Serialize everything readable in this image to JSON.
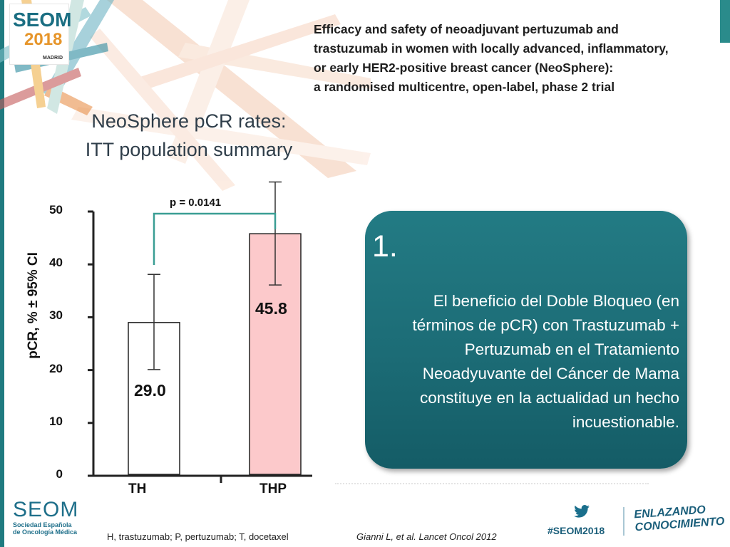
{
  "header": {
    "logo_text": "SEOM",
    "logo_year": "2018",
    "logo_city": "MADRID",
    "paper_title_lines": [
      "Efficacy and safety of neoadjuvant pertuzumab and",
      "trastuzumab in women with locally advanced, inflammatory,",
      "or early HER2-positive breast cancer (NeoSphere):",
      "a randomised multicentre, open-label, phase 2 trial"
    ]
  },
  "chart_title_lines": [
    "NeoSphere pCR rates:",
    "ITT population summary"
  ],
  "chart_data": {
    "type": "bar",
    "categories": [
      "TH",
      "THP"
    ],
    "values": [
      29.0,
      45.8
    ],
    "value_labels": [
      "29.0",
      "45.8"
    ],
    "error_bars": [
      [
        20.1,
        38.1
      ],
      [
        36.1,
        55.6
      ]
    ],
    "ylabel": "pCR, % ± 95% CI",
    "ylim": [
      0,
      50
    ],
    "yticks": [
      "0",
      "10",
      "20",
      "30",
      "40",
      "50"
    ],
    "annotation": "p = 0.0141",
    "colors": {
      "TH": "#ffffff",
      "THP": "#fcc9cb",
      "bracket": "#3a9e94"
    }
  },
  "callout": {
    "number": "1.",
    "text_lines": [
      "El beneficio del Doble Bloqueo (en",
      "términos de pCR) con Trastuzumab +",
      "Pertuzumab en el Tratamiento",
      "Neoadyuvante del Cáncer de Mama",
      "constituye en la actualidad un hecho",
      "incuestionable."
    ]
  },
  "footer": {
    "seom_word": "SEOM",
    "seom_sub1": "Sociedad Española",
    "seom_sub2": "de Oncología Médica",
    "abbrev": "H, trastuzumab; P, pertuzumab; T, docetaxel",
    "citation": "Gianni L, et al.  Lancet Oncol 2012",
    "hashtag": "#SEOM2018",
    "tagline_1": "ENLAZANDO",
    "tagline_2": "CONOCIMIENTO"
  }
}
